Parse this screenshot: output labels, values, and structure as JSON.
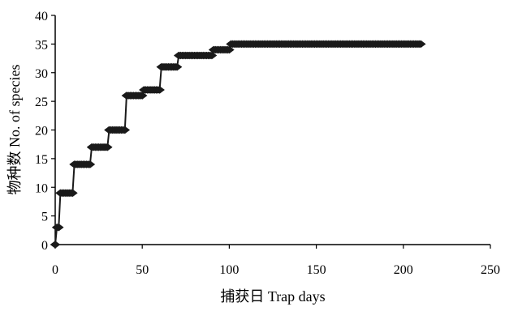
{
  "chart_data": {
    "type": "line",
    "title": "",
    "xlabel": "捕获日 Trap days",
    "ylabel": "物种数 No. of species",
    "xlim": [
      0,
      250
    ],
    "ylim": [
      0,
      40
    ],
    "xticks": [
      0,
      50,
      100,
      150,
      200,
      250
    ],
    "yticks": [
      0,
      5,
      10,
      15,
      20,
      25,
      30,
      35,
      40
    ],
    "grid": false,
    "legend": "none",
    "step": true,
    "series": [
      {
        "name": "",
        "color": "#1a1a1a",
        "marker": "diamond",
        "points": [
          [
            0,
            0
          ],
          [
            1,
            3
          ],
          [
            2,
            3
          ],
          [
            3,
            9
          ],
          [
            10,
            9
          ],
          [
            11,
            14
          ],
          [
            20,
            14
          ],
          [
            21,
            17
          ],
          [
            30,
            17
          ],
          [
            31,
            20
          ],
          [
            40,
            20
          ],
          [
            41,
            26
          ],
          [
            50,
            26
          ],
          [
            51,
            27
          ],
          [
            60,
            27
          ],
          [
            61,
            31
          ],
          [
            70,
            31
          ],
          [
            71,
            33
          ],
          [
            90,
            33
          ],
          [
            91,
            34
          ],
          [
            100,
            34
          ],
          [
            101,
            35
          ],
          [
            210,
            35
          ]
        ]
      }
    ]
  }
}
